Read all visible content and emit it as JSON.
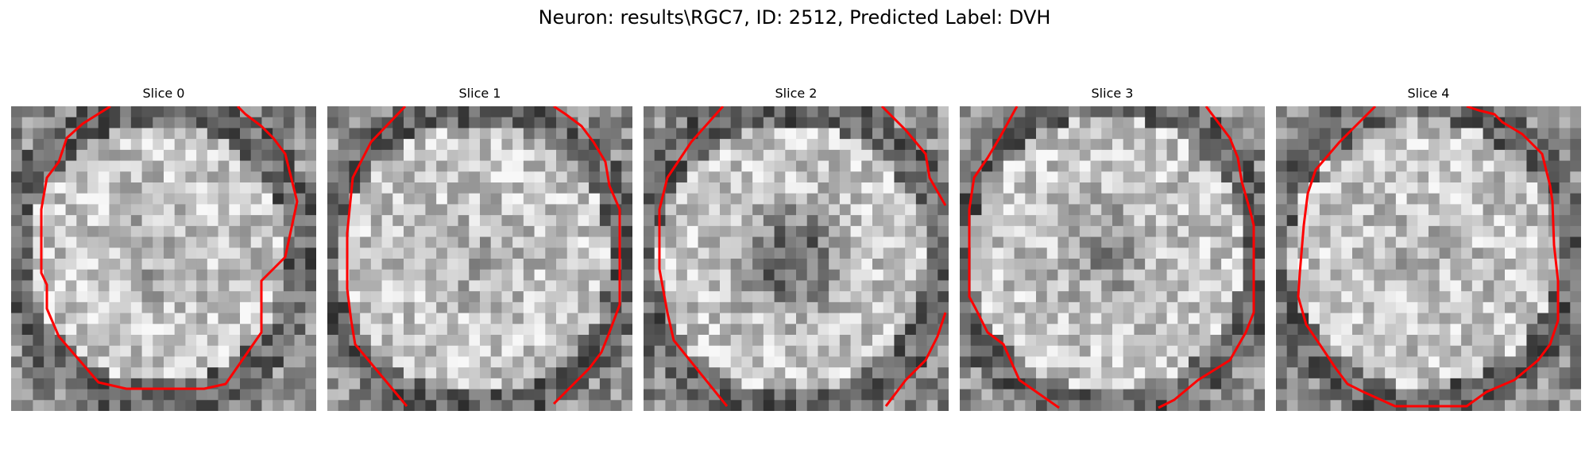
{
  "figure": {
    "title": "Neuron: results\\RGC7, ID: 2512, Predicted Label: DVH"
  },
  "colors": {
    "contour": "#ff0000",
    "background": "#ffffff"
  },
  "slices": [
    {
      "title": "Slice 0"
    },
    {
      "title": "Slice 1"
    },
    {
      "title": "Slice 2"
    },
    {
      "title": "Slice 3"
    },
    {
      "title": "Slice 4"
    }
  ]
}
